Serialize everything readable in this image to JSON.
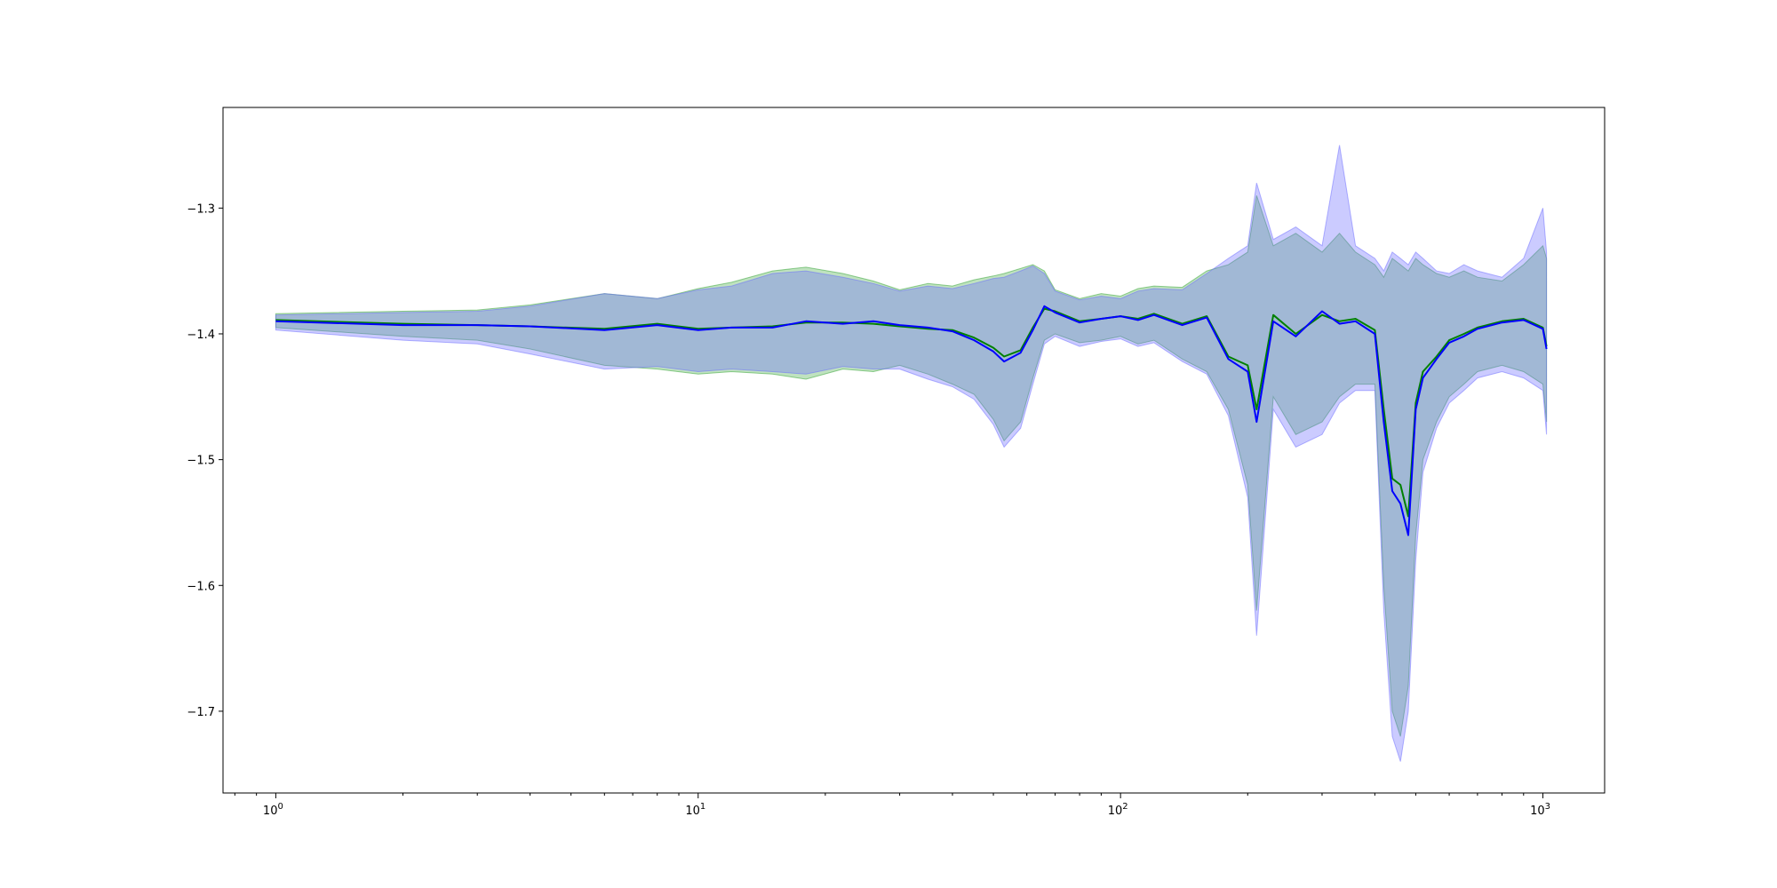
{
  "chart_data": {
    "type": "line",
    "title": "",
    "xlabel": "",
    "ylabel": "",
    "xscale": "log",
    "xlim": [
      0.75,
      1400
    ],
    "ylim": [
      -1.765,
      -1.22
    ],
    "grid": false,
    "legend": "none",
    "y_ticks": [
      -1.3,
      -1.4,
      -1.5,
      -1.6,
      -1.7
    ],
    "y_tick_labels": [
      "−1.3",
      "−1.4",
      "−1.5",
      "−1.6",
      "−1.7"
    ],
    "x_major_ticks": [
      1,
      10,
      100,
      1000
    ],
    "x_tick_labels": [
      {
        "base": "10",
        "exp": "0"
      },
      {
        "base": "10",
        "exp": "1"
      },
      {
        "base": "10",
        "exp": "2"
      },
      {
        "base": "10",
        "exp": "3"
      }
    ],
    "series": [
      {
        "color": "#008000",
        "band_color": "#2ca02c",
        "line_width": 2,
        "x": [
          1,
          2,
          3,
          4,
          6,
          8,
          10,
          12,
          15,
          18,
          22,
          26,
          30,
          35,
          40,
          45,
          50,
          53,
          58,
          62,
          66,
          70,
          80,
          90,
          100,
          110,
          120,
          140,
          160,
          180,
          200,
          210,
          230,
          260,
          300,
          330,
          360,
          400,
          420,
          440,
          460,
          480,
          500,
          520,
          560,
          600,
          650,
          700,
          800,
          900,
          1000,
          1020
        ],
        "y": [
          -1.389,
          -1.392,
          -1.393,
          -1.394,
          -1.396,
          -1.392,
          -1.396,
          -1.395,
          -1.394,
          -1.391,
          -1.391,
          -1.392,
          -1.394,
          -1.396,
          -1.397,
          -1.403,
          -1.411,
          -1.418,
          -1.413,
          -1.395,
          -1.38,
          -1.382,
          -1.39,
          -1.388,
          -1.386,
          -1.388,
          -1.384,
          -1.392,
          -1.386,
          -1.418,
          -1.425,
          -1.46,
          -1.385,
          -1.4,
          -1.385,
          -1.39,
          -1.388,
          -1.397,
          -1.46,
          -1.515,
          -1.52,
          -1.545,
          -1.455,
          -1.43,
          -1.418,
          -1.405,
          -1.4,
          -1.395,
          -1.39,
          -1.388,
          -1.395,
          -1.41
        ],
        "lower": [
          -1.395,
          -1.402,
          -1.405,
          -1.412,
          -1.425,
          -1.428,
          -1.432,
          -1.43,
          -1.432,
          -1.436,
          -1.428,
          -1.43,
          -1.425,
          -1.432,
          -1.44,
          -1.448,
          -1.468,
          -1.485,
          -1.47,
          -1.435,
          -1.405,
          -1.4,
          -1.407,
          -1.405,
          -1.402,
          -1.408,
          -1.405,
          -1.42,
          -1.43,
          -1.46,
          -1.52,
          -1.62,
          -1.45,
          -1.48,
          -1.47,
          -1.45,
          -1.44,
          -1.44,
          -1.6,
          -1.7,
          -1.72,
          -1.68,
          -1.56,
          -1.5,
          -1.47,
          -1.45,
          -1.44,
          -1.43,
          -1.425,
          -1.43,
          -1.44,
          -1.47
        ],
        "upper": [
          -1.384,
          -1.382,
          -1.381,
          -1.377,
          -1.368,
          -1.372,
          -1.364,
          -1.359,
          -1.35,
          -1.347,
          -1.352,
          -1.358,
          -1.365,
          -1.36,
          -1.362,
          -1.357,
          -1.354,
          -1.352,
          -1.348,
          -1.345,
          -1.35,
          -1.365,
          -1.372,
          -1.368,
          -1.37,
          -1.364,
          -1.362,
          -1.363,
          -1.35,
          -1.345,
          -1.335,
          -1.29,
          -1.33,
          -1.32,
          -1.335,
          -1.32,
          -1.335,
          -1.345,
          -1.355,
          -1.34,
          -1.345,
          -1.35,
          -1.34,
          -1.345,
          -1.352,
          -1.355,
          -1.35,
          -1.355,
          -1.358,
          -1.345,
          -1.33,
          -1.34
        ]
      },
      {
        "color": "#0000ff",
        "band_color": "#6a6aff",
        "line_width": 2,
        "x": [
          1,
          2,
          3,
          4,
          6,
          8,
          10,
          12,
          15,
          18,
          22,
          26,
          30,
          35,
          40,
          45,
          50,
          53,
          58,
          62,
          66,
          70,
          80,
          90,
          100,
          110,
          120,
          140,
          160,
          180,
          200,
          210,
          230,
          260,
          300,
          330,
          360,
          400,
          420,
          440,
          460,
          480,
          500,
          520,
          560,
          600,
          650,
          700,
          800,
          900,
          1000,
          1020
        ],
        "y": [
          -1.39,
          -1.393,
          -1.393,
          -1.394,
          -1.397,
          -1.393,
          -1.397,
          -1.395,
          -1.395,
          -1.39,
          -1.392,
          -1.39,
          -1.393,
          -1.395,
          -1.398,
          -1.405,
          -1.414,
          -1.422,
          -1.415,
          -1.397,
          -1.378,
          -1.383,
          -1.391,
          -1.388,
          -1.386,
          -1.389,
          -1.385,
          -1.393,
          -1.387,
          -1.42,
          -1.43,
          -1.47,
          -1.39,
          -1.402,
          -1.382,
          -1.392,
          -1.39,
          -1.4,
          -1.47,
          -1.525,
          -1.535,
          -1.56,
          -1.46,
          -1.435,
          -1.42,
          -1.407,
          -1.402,
          -1.396,
          -1.391,
          -1.389,
          -1.396,
          -1.412
        ],
        "lower": [
          -1.397,
          -1.405,
          -1.408,
          -1.416,
          -1.428,
          -1.426,
          -1.43,
          -1.428,
          -1.43,
          -1.432,
          -1.426,
          -1.428,
          -1.428,
          -1.436,
          -1.442,
          -1.452,
          -1.472,
          -1.49,
          -1.475,
          -1.44,
          -1.408,
          -1.402,
          -1.41,
          -1.406,
          -1.404,
          -1.41,
          -1.407,
          -1.422,
          -1.432,
          -1.465,
          -1.53,
          -1.64,
          -1.46,
          -1.49,
          -1.48,
          -1.455,
          -1.445,
          -1.445,
          -1.62,
          -1.72,
          -1.74,
          -1.7,
          -1.58,
          -1.51,
          -1.475,
          -1.455,
          -1.445,
          -1.435,
          -1.43,
          -1.435,
          -1.445,
          -1.48
        ],
        "upper": [
          -1.385,
          -1.383,
          -1.382,
          -1.378,
          -1.368,
          -1.372,
          -1.365,
          -1.362,
          -1.352,
          -1.35,
          -1.355,
          -1.36,
          -1.366,
          -1.362,
          -1.364,
          -1.36,
          -1.356,
          -1.355,
          -1.35,
          -1.346,
          -1.352,
          -1.366,
          -1.373,
          -1.37,
          -1.372,
          -1.366,
          -1.364,
          -1.365,
          -1.352,
          -1.34,
          -1.33,
          -1.28,
          -1.325,
          -1.315,
          -1.33,
          -1.25,
          -1.33,
          -1.34,
          -1.35,
          -1.335,
          -1.34,
          -1.345,
          -1.335,
          -1.34,
          -1.35,
          -1.352,
          -1.345,
          -1.35,
          -1.355,
          -1.34,
          -1.3,
          -1.335
        ]
      }
    ]
  }
}
